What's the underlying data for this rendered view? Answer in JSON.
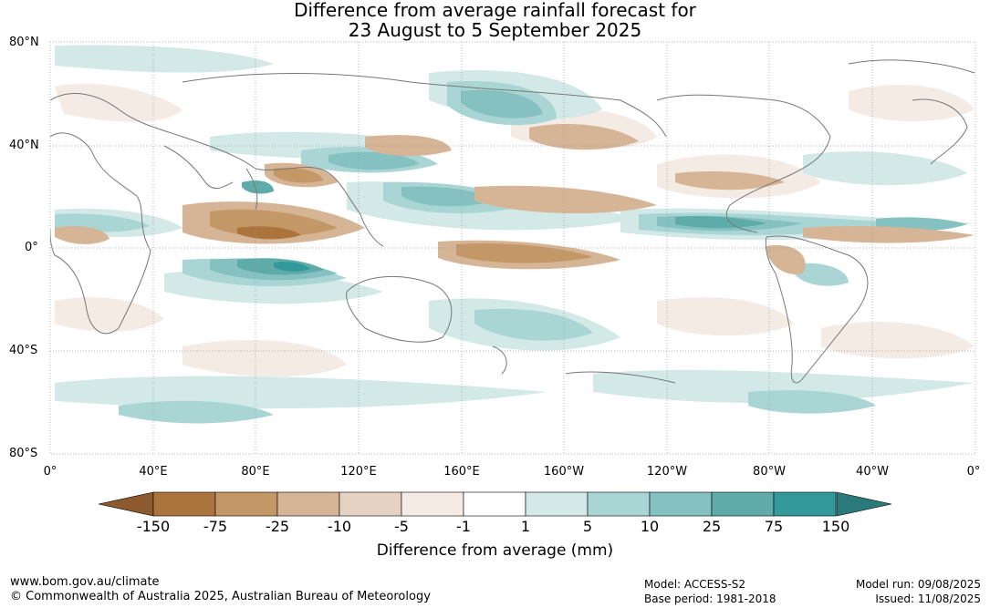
{
  "title": {
    "line1": "Difference from average rainfall forecast for",
    "line2": "23 August to 5 September 2025"
  },
  "map": {
    "lat_labels": [
      "80°N",
      "40°N",
      "0°",
      "40°S",
      "80°S"
    ],
    "lon_labels": [
      "0°",
      "40°E",
      "80°E",
      "120°E",
      "160°E",
      "160°W",
      "120°W",
      "80°W",
      "40°W",
      "0°"
    ]
  },
  "legend": {
    "title": "Difference from average (mm)",
    "boundaries": [
      "-150",
      "-75",
      "-25",
      "-10",
      "-5",
      "-1",
      "1",
      "5",
      "10",
      "25",
      "75",
      "150"
    ],
    "colors": {
      "below_min": "#8c5a2e",
      "bins": [
        "#ab743d",
        "#c49767",
        "#d6b596",
        "#e6d2c2",
        "#f4ebe5",
        "#ffffff",
        "#d3e9e8",
        "#a9d6d5",
        "#86c1c1",
        "#5eabaa",
        "#33999a"
      ],
      "above_max": "#2a7a7b"
    }
  },
  "footer": {
    "url": "www.bom.gov.au/climate",
    "copyright": "© Commonwealth of Australia 2025, Australian Bureau of Meteorology",
    "model": "Model: ACCESS-S2",
    "base_period": "Base period: 1981-2018",
    "model_run": "Model run: 09/08/2025",
    "issued": "Issued: 11/08/2025"
  }
}
